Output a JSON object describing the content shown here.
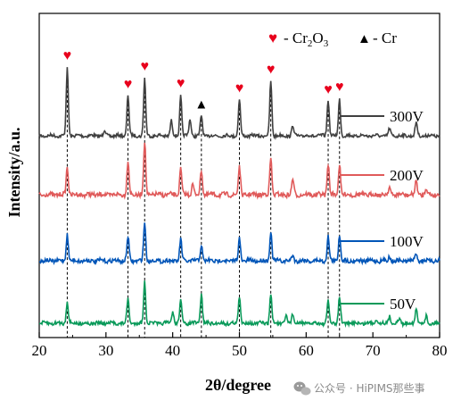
{
  "chart_data": {
    "type": "line",
    "xlabel": "2θ/degree",
    "ylabel": "Intensity/a.u.",
    "xlim": [
      20,
      80
    ],
    "xticks": [
      "20",
      "30",
      "40",
      "50",
      "60",
      "70",
      "80"
    ],
    "legend": {
      "placement": "top-right",
      "items": [
        {
          "symbol": "♥",
          "prefix": "- Cr",
          "sub1": "2",
          "mid": "O",
          "sub2": "3",
          "color": "#e8001c"
        },
        {
          "symbol": "▲",
          "prefix": "- Cr",
          "sub1": "",
          "mid": "",
          "sub2": "",
          "color": "#000000"
        }
      ]
    },
    "marker_names": [
      "Cr2O3",
      "Cr"
    ],
    "reference_peaks": [
      {
        "x": 24.2,
        "phase": "Cr2O3"
      },
      {
        "x": 33.3,
        "phase": "Cr2O3"
      },
      {
        "x": 35.8,
        "phase": "Cr2O3"
      },
      {
        "x": 41.2,
        "phase": "Cr2O3"
      },
      {
        "x": 44.3,
        "phase": "Cr"
      },
      {
        "x": 50.0,
        "phase": "Cr2O3"
      },
      {
        "x": 54.7,
        "phase": "Cr2O3"
      },
      {
        "x": 63.3,
        "phase": "Cr2O3"
      },
      {
        "x": 65.0,
        "phase": "Cr2O3"
      }
    ],
    "series": [
      {
        "name": "300V",
        "color": "#404040",
        "peaks": [
          {
            "x": 24.2,
            "h": 1.0
          },
          {
            "x": 29.8,
            "h": 0.08
          },
          {
            "x": 33.3,
            "h": 0.62
          },
          {
            "x": 35.8,
            "h": 0.85
          },
          {
            "x": 39.8,
            "h": 0.22
          },
          {
            "x": 41.2,
            "h": 0.6
          },
          {
            "x": 42.6,
            "h": 0.25
          },
          {
            "x": 44.3,
            "h": 0.3
          },
          {
            "x": 50.0,
            "h": 0.55
          },
          {
            "x": 54.7,
            "h": 0.82
          },
          {
            "x": 58.0,
            "h": 0.15
          },
          {
            "x": 63.3,
            "h": 0.55
          },
          {
            "x": 65.0,
            "h": 0.55
          },
          {
            "x": 72.5,
            "h": 0.1
          },
          {
            "x": 76.5,
            "h": 0.2
          }
        ]
      },
      {
        "name": "200V",
        "color": "#e05a5a",
        "peaks": [
          {
            "x": 24.2,
            "h": 0.45
          },
          {
            "x": 33.3,
            "h": 0.55
          },
          {
            "x": 35.8,
            "h": 0.85
          },
          {
            "x": 41.2,
            "h": 0.42
          },
          {
            "x": 43.0,
            "h": 0.18
          },
          {
            "x": 44.3,
            "h": 0.4
          },
          {
            "x": 50.0,
            "h": 0.45
          },
          {
            "x": 54.7,
            "h": 0.6
          },
          {
            "x": 58.0,
            "h": 0.25
          },
          {
            "x": 63.3,
            "h": 0.5
          },
          {
            "x": 65.0,
            "h": 0.5
          },
          {
            "x": 72.5,
            "h": 0.12
          },
          {
            "x": 76.5,
            "h": 0.22
          },
          {
            "x": 78.0,
            "h": 0.1
          }
        ]
      },
      {
        "name": "100V",
        "color": "#0055b8",
        "peaks": [
          {
            "x": 24.2,
            "h": 0.5
          },
          {
            "x": 33.3,
            "h": 0.45
          },
          {
            "x": 35.8,
            "h": 0.72
          },
          {
            "x": 41.2,
            "h": 0.4
          },
          {
            "x": 44.3,
            "h": 0.3
          },
          {
            "x": 50.0,
            "h": 0.42
          },
          {
            "x": 54.7,
            "h": 0.55
          },
          {
            "x": 58.0,
            "h": 0.1
          },
          {
            "x": 63.3,
            "h": 0.45
          },
          {
            "x": 65.0,
            "h": 0.5
          },
          {
            "x": 72.5,
            "h": 0.08
          },
          {
            "x": 76.5,
            "h": 0.15
          }
        ]
      },
      {
        "name": "50V",
        "color": "#0a9a5a",
        "peaks": [
          {
            "x": 24.2,
            "h": 0.45
          },
          {
            "x": 33.3,
            "h": 0.5
          },
          {
            "x": 35.8,
            "h": 0.85
          },
          {
            "x": 40.0,
            "h": 0.25
          },
          {
            "x": 41.2,
            "h": 0.5
          },
          {
            "x": 44.3,
            "h": 0.6
          },
          {
            "x": 50.0,
            "h": 0.55
          },
          {
            "x": 54.7,
            "h": 0.6
          },
          {
            "x": 57.0,
            "h": 0.15
          },
          {
            "x": 58.0,
            "h": 0.2
          },
          {
            "x": 63.3,
            "h": 0.45
          },
          {
            "x": 65.0,
            "h": 0.55
          },
          {
            "x": 70.5,
            "h": 0.1
          },
          {
            "x": 72.5,
            "h": 0.15
          },
          {
            "x": 74.0,
            "h": 0.1
          },
          {
            "x": 76.5,
            "h": 0.3
          },
          {
            "x": 78.0,
            "h": 0.15
          }
        ]
      }
    ]
  },
  "watermark": {
    "icon": "wechat-icon",
    "text": "公众号 · HiPIMS那些事"
  }
}
